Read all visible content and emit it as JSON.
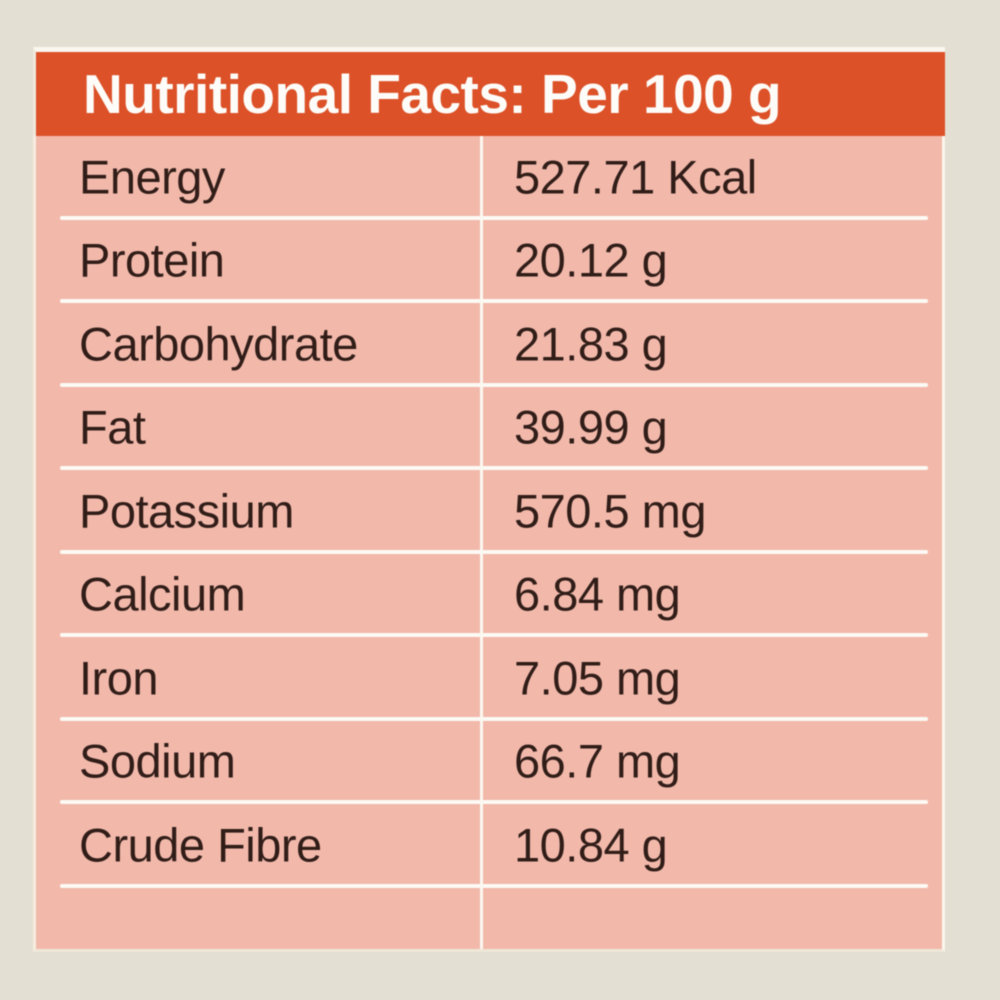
{
  "label": {
    "title": "Nutritional Facts: Per 100 g",
    "rows": [
      {
        "nutrient": "Energy",
        "value": "527.71 Kcal"
      },
      {
        "nutrient": "Protein",
        "value": "20.12 g"
      },
      {
        "nutrient": "Carbohydrate",
        "value": "21.83 g"
      },
      {
        "nutrient": "Fat",
        "value": "39.99 g"
      },
      {
        "nutrient": "Potassium",
        "value": "570.5 mg"
      },
      {
        "nutrient": "Calcium",
        "value": "6.84 mg"
      },
      {
        "nutrient": "Iron",
        "value": "7.05 mg"
      },
      {
        "nutrient": "Sodium",
        "value": "66.7 mg"
      },
      {
        "nutrient": "Crude Fibre",
        "value": "10.84 g"
      }
    ],
    "colors": {
      "header_bg": "#dc5128",
      "header_text": "#fdfcf8",
      "body_bg": "#f2b9ab",
      "page_bg": "#e4dfd3",
      "separator": "#fcfaf4",
      "text": "#311d18"
    }
  }
}
